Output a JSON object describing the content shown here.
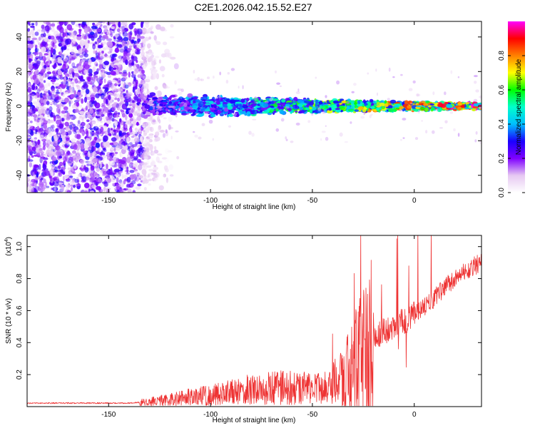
{
  "figure_title": "C2E1.2026.042.15.52.E27",
  "chart_data": [
    {
      "type": "heatmap",
      "title": "C2E1.2026.042.15.52.E27",
      "xlabel": "Height of straight line (km)",
      "ylabel": "Frequency (Hz)",
      "xlim": [
        -190,
        33
      ],
      "ylim": [
        -50,
        49
      ],
      "xticks": [
        -150,
        -100,
        -50,
        0
      ],
      "xtick_labels": [
        "-150",
        "-100",
        "-50",
        "0"
      ],
      "yticks": [
        -40,
        -20,
        0,
        20,
        40
      ],
      "ytick_labels": [
        "-40",
        "-20",
        "0",
        "20",
        "40"
      ],
      "colorbar": {
        "label": "Normalized spectral amplitude",
        "range": [
          0,
          1
        ],
        "ticks": [
          0.0,
          0.2,
          0.4,
          0.6,
          0.8
        ],
        "tick_labels": [
          "0.0",
          "0.2",
          "0.4",
          "0.6",
          "0.8"
        ],
        "colormap": [
          "#ffffff",
          "#e6c8f2",
          "#7f00ff",
          "#1a00ff",
          "#00bfff",
          "#00ffcc",
          "#00ff00",
          "#ffff00",
          "#ff8000",
          "#ff0000",
          "#ff00ff"
        ]
      },
      "regions": [
        {
          "name": "noise",
          "x_range": [
            -190,
            -133
          ],
          "freq_range": [
            -50,
            49
          ],
          "amplitude": 0.1
        },
        {
          "name": "signal band",
          "x_range": [
            -133,
            33
          ],
          "center_freq_hz": 0,
          "halfwidth_hz_start": 6,
          "halfwidth_hz_end": 1.5,
          "amplitude_start": 0.3,
          "amplitude_end": 0.95
        }
      ]
    },
    {
      "type": "line",
      "title": "",
      "xlabel": "Height of straight line (km)",
      "ylabel": "SNR (10 * v/v)",
      "y_multiplier": "(x10^4)",
      "y_multiplier_base": "(x10",
      "y_multiplier_exp": "4",
      "xlim": [
        -190,
        33
      ],
      "ylim": [
        0,
        1.07
      ],
      "xticks": [
        -150,
        -100,
        -50,
        0
      ],
      "xtick_labels": [
        "-150",
        "-100",
        "-50",
        "0"
      ],
      "yticks": [
        0.2,
        0.4,
        0.6,
        0.8,
        1.0
      ],
      "ytick_labels": [
        "0.2",
        "0.4",
        "0.6",
        "0.8",
        "1.0"
      ],
      "color": "#ee3333",
      "series": [
        {
          "name": "SNR",
          "trend": {
            "x": [
              -190,
              -140,
              -130,
              -120,
              -110,
              -100,
              -90,
              -80,
              -70,
              -60,
              -50,
              -40,
              -35,
              -30,
              -25,
              -20,
              -15,
              -10,
              -5,
              0,
              5,
              10,
              15,
              20,
              25,
              33
            ],
            "y": [
              0.022,
              0.022,
              0.03,
              0.045,
              0.06,
              0.07,
              0.09,
              0.11,
              0.12,
              0.12,
              0.11,
              0.12,
              0.16,
              0.24,
              0.33,
              0.42,
              0.48,
              0.5,
              0.53,
              0.57,
              0.62,
              0.68,
              0.75,
              0.8,
              0.85,
              0.9
            ]
          }
        }
      ]
    }
  ]
}
